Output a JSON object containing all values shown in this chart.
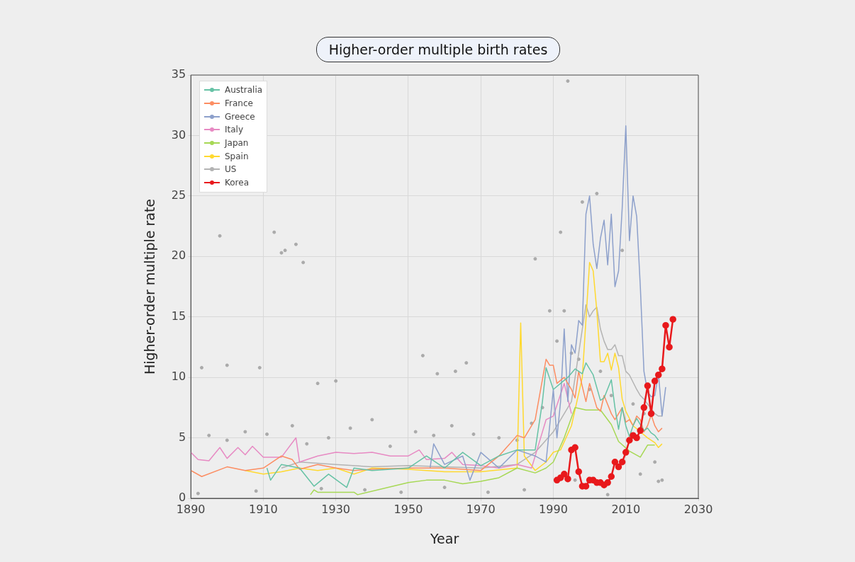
{
  "chart_data": {
    "type": "line",
    "title": "Higher-order multiple birth rates",
    "xlabel": "Year",
    "ylabel": "Higher-order multiple rate",
    "xlim": [
      1890,
      2030
    ],
    "xticks": [
      1890,
      1910,
      1930,
      1950,
      1970,
      1990,
      2010,
      2030
    ],
    "ylim": [
      0,
      35
    ],
    "yticks": [
      0,
      5,
      10,
      15,
      20,
      25,
      30,
      35
    ],
    "grid": true,
    "legend": "top left",
    "line_style": "solid",
    "series": [
      {
        "type": "scatter",
        "color": "#aaaaaa",
        "marker": "circle",
        "x": [
          1893,
          1898,
          1900,
          1909,
          1913,
          1915,
          1916,
          1919,
          1921,
          1925,
          1930,
          1954,
          1958,
          1963,
          1966,
          1985,
          1992,
          1993,
          1998,
          2002,
          1994,
          1989,
          2009,
          1895,
          1900,
          1905,
          1911,
          1918,
          1922,
          1928,
          1934,
          1940,
          1945,
          1952,
          1957,
          1962,
          1968,
          1975,
          1980,
          1984,
          1987,
          1991,
          1995,
          1997,
          2000,
          2003,
          2006,
          2012,
          2015,
          2018,
          2020,
          1892,
          1908,
          1926,
          1938,
          1948,
          1960,
          1972,
          1982,
          1996,
          2005,
          2014,
          2019
        ],
        "values": [
          10.8,
          21.7,
          11,
          10.8,
          22,
          20.3,
          20.5,
          21,
          19.5,
          9.5,
          9.7,
          11.8,
          10.3,
          10.5,
          11.2,
          19.8,
          22,
          15.5,
          24.5,
          25.2,
          34.5,
          15.5,
          20.5,
          5.2,
          4.8,
          5.5,
          5.3,
          6,
          4.5,
          5,
          5.8,
          6.5,
          4.3,
          5.5,
          5.2,
          6,
          5.3,
          5,
          4.8,
          6.2,
          7.5,
          13,
          12,
          11.5,
          9,
          10.5,
          8.5,
          7.8,
          7,
          3,
          1.5,
          0.4,
          0.6,
          0.8,
          0.7,
          0.5,
          0.9,
          0.5,
          0.7,
          1.5,
          0.3,
          2,
          1.4
        ]
      },
      {
        "name": "Australia",
        "color": "#66c2a5",
        "marker": "none",
        "x": [
          1911,
          1912,
          1915,
          1920,
          1924,
          1928,
          1933,
          1935,
          1940,
          1950,
          1955,
          1960,
          1965,
          1970,
          1975,
          1980,
          1985,
          1987,
          1988,
          1990,
          1992,
          1994,
          1996,
          1998,
          1999,
          2001,
          2003,
          2004,
          2006,
          2007,
          2008,
          2009,
          2010,
          2011,
          2012,
          2013,
          2014,
          2015,
          2016,
          2017,
          2018,
          2019
        ],
        "values": [
          2.5,
          1.5,
          2.8,
          2.5,
          1.0,
          2.0,
          0.9,
          2.5,
          2.3,
          2.5,
          3.5,
          2.5,
          3.8,
          2.7,
          3.5,
          4.0,
          4.0,
          8.0,
          10.8,
          9.0,
          9.5,
          10.0,
          10.7,
          10.3,
          11.2,
          10.2,
          8.1,
          8.3,
          9.8,
          7.5,
          5.7,
          7.5,
          6.0,
          5.1,
          6.0,
          6.6,
          6.1,
          5.6,
          5.8,
          5.4,
          5.2,
          4.8
        ]
      },
      {
        "name": "France",
        "color": "#fc8d62",
        "marker": "none",
        "x": [
          1890,
          1893,
          1900,
          1905,
          1910,
          1915,
          1918,
          1920,
          1925,
          1930,
          1935,
          1940,
          1950,
          1960,
          1970,
          1975,
          1978,
          1980,
          1982,
          1985,
          1988,
          1989,
          1990,
          1991,
          1993,
          1995,
          1996,
          1997,
          1999,
          2000,
          2002,
          2003,
          2004,
          2006,
          2007,
          2009,
          2010,
          2011,
          2012,
          2013,
          2014,
          2015,
          2016,
          2017,
          2018,
          2019,
          2020
        ],
        "values": [
          2.3,
          1.8,
          2.6,
          2.3,
          2.5,
          3.5,
          3.2,
          2.4,
          2.8,
          2.5,
          2.3,
          2.4,
          2.5,
          2.5,
          2.3,
          3.5,
          4.5,
          5.2,
          5.0,
          6.5,
          11.5,
          11.0,
          11.0,
          9.5,
          10.0,
          9.0,
          8.3,
          10.5,
          8.0,
          9.5,
          7.5,
          7.2,
          8.5,
          7.0,
          6.5,
          7.5,
          6.3,
          6.5,
          6.0,
          6.8,
          6.5,
          5.5,
          6.0,
          6.9,
          6.0,
          5.5,
          5.8
        ]
      },
      {
        "name": "Greece",
        "color": "#8da0cb",
        "marker": "none",
        "x": [
          1956,
          1957,
          1960,
          1965,
          1967,
          1970,
          1975,
          1980,
          1985,
          1988,
          1990,
          1991,
          1992,
          1993,
          1994,
          1995,
          1996,
          1997,
          1998,
          1999,
          2000,
          2001,
          2002,
          2003,
          2004,
          2005,
          2006,
          2007,
          2008,
          2009,
          2010,
          2011,
          2012,
          2013,
          2014,
          2015,
          2016,
          2017,
          2018,
          2019,
          2020,
          2021
        ],
        "values": [
          2.5,
          4.5,
          2.8,
          3.5,
          1.5,
          3.8,
          2.5,
          4.0,
          3.5,
          3.0,
          9.0,
          5.0,
          8.0,
          14.0,
          8.0,
          12.7,
          12.0,
          14.7,
          14.3,
          23.5,
          25.0,
          21.0,
          19.0,
          21.5,
          23.0,
          19.3,
          23.5,
          17.5,
          18.8,
          24.0,
          30.8,
          21.3,
          25.0,
          23.3,
          17.5,
          10.5,
          8.8,
          8.4,
          8.5,
          10.3,
          6.8,
          9.2
        ]
      },
      {
        "name": "Italy",
        "color": "#e78ac3",
        "marker": "none",
        "x": [
          1890,
          1892,
          1895,
          1898,
          1900,
          1903,
          1905,
          1907,
          1910,
          1915,
          1919,
          1920,
          1925,
          1930,
          1935,
          1940,
          1945,
          1950,
          1953,
          1955,
          1960,
          1962,
          1965,
          1970,
          1975,
          1980,
          1984,
          1986,
          1988,
          1990,
          1993,
          1995
        ],
        "values": [
          3.8,
          3.2,
          3.1,
          4.2,
          3.3,
          4.2,
          3.6,
          4.3,
          3.4,
          3.4,
          5.0,
          3.0,
          3.5,
          3.8,
          3.7,
          3.8,
          3.5,
          3.5,
          4.0,
          3.2,
          3.3,
          3.8,
          2.8,
          2.7,
          2.5,
          2.8,
          2.5,
          4.5,
          6.5,
          6.8,
          9.5,
          7.0
        ]
      },
      {
        "name": "Japan",
        "color": "#a6d854",
        "marker": "none",
        "x": [
          1923,
          1924,
          1925,
          1935,
          1936,
          1950,
          1955,
          1960,
          1965,
          1970,
          1975,
          1980,
          1985,
          1988,
          1990,
          1993,
          1996,
          1999,
          2003,
          2006,
          2008,
          2011,
          2014,
          2016,
          2018
        ],
        "values": [
          0.3,
          0.7,
          0.5,
          0.5,
          0.3,
          1.3,
          1.5,
          1.5,
          1.2,
          1.4,
          1.7,
          2.5,
          2.1,
          2.5,
          3.0,
          5.0,
          7.5,
          7.3,
          7.3,
          6.1,
          4.7,
          3.9,
          3.4,
          4.4,
          4.4
        ]
      },
      {
        "name": "Spain",
        "color": "#ffd92f",
        "marker": "none",
        "x": [
          1905,
          1910,
          1915,
          1920,
          1925,
          1930,
          1935,
          1940,
          1950,
          1960,
          1970,
          1980,
          1981,
          1982,
          1985,
          1988,
          1990,
          1992,
          1995,
          1998,
          2000,
          2001,
          2002,
          2003,
          2004,
          2005,
          2006,
          2007,
          2008,
          2009,
          2010,
          2012,
          2014,
          2016,
          2018,
          2019,
          2020
        ],
        "values": [
          2.3,
          2.0,
          2.2,
          2.5,
          2.3,
          2.5,
          2.0,
          2.5,
          2.4,
          2.2,
          2.2,
          2.5,
          14.5,
          3.5,
          2.3,
          3.0,
          3.8,
          4.0,
          6.0,
          10.0,
          19.5,
          18.8,
          15.5,
          11.3,
          11.3,
          12.0,
          10.6,
          12.0,
          10.8,
          8.2,
          7.2,
          6.0,
          5.5,
          5.0,
          4.6,
          4.2,
          4.5
        ]
      },
      {
        "name": "US",
        "color": "#b3b3b3",
        "marker": "none",
        "x": [
          1915,
          1920,
          1930,
          1940,
          1950,
          1960,
          1970,
          1980,
          1985,
          1990,
          1995,
          1998,
          1999,
          2000,
          2001,
          2002,
          2003,
          2004,
          2005,
          2006,
          2007,
          2008,
          2009,
          2010,
          2011,
          2012,
          2013,
          2014,
          2015,
          2016,
          2017,
          2018,
          2019,
          2020
        ],
        "values": [
          2.5,
          3.0,
          2.8,
          2.6,
          2.7,
          2.6,
          2.5,
          2.8,
          3.8,
          5.5,
          8.0,
          14.0,
          16.0,
          15.0,
          15.5,
          15.8,
          14.0,
          13.0,
          12.3,
          12.3,
          12.7,
          11.8,
          11.8,
          10.5,
          10.2,
          9.6,
          9.0,
          8.5,
          8.2,
          7.8,
          7.4,
          7.0,
          6.8,
          6.8
        ]
      },
      {
        "name": "Korea",
        "color": "#e8191c",
        "marker": "circle",
        "x": [
          1991,
          1992,
          1993,
          1994,
          1995,
          1996,
          1997,
          1998,
          1999,
          2000,
          2001,
          2002,
          2003,
          2004,
          2005,
          2006,
          2007,
          2008,
          2009,
          2010,
          2011,
          2012,
          2013,
          2014,
          2015,
          2016,
          2017,
          2018,
          2019,
          2020,
          2021,
          2022,
          2023
        ],
        "values": [
          1.5,
          1.7,
          2.0,
          1.6,
          4.0,
          4.2,
          2.2,
          1.0,
          1.0,
          1.5,
          1.5,
          1.3,
          1.3,
          1.1,
          1.3,
          1.8,
          3.0,
          2.6,
          3.0,
          3.8,
          4.8,
          5.2,
          5.0,
          5.6,
          7.5,
          9.3,
          7.0,
          9.7,
          10.2,
          10.7,
          14.3,
          12.5,
          14.8
        ]
      }
    ]
  }
}
